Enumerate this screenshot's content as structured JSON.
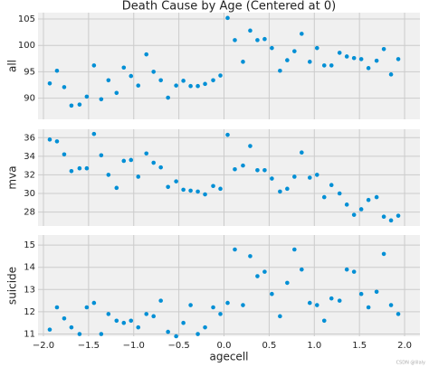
{
  "chart_data": [
    {
      "type": "scatter",
      "title": "Death Cause by Age (Centered at 0)",
      "ylabel": "all",
      "color": "#008fd5",
      "grid": true,
      "x": [
        -1.93,
        -1.85,
        -1.77,
        -1.69,
        -1.6,
        -1.52,
        -1.44,
        -1.36,
        -1.28,
        -1.19,
        -1.11,
        -1.03,
        -0.95,
        -0.86,
        -0.78,
        -0.7,
        -0.62,
        -0.53,
        -0.45,
        -0.37,
        -0.29,
        -0.21,
        -0.12,
        -0.04,
        0.04,
        0.12,
        0.21,
        0.29,
        0.37,
        0.45,
        0.53,
        0.62,
        0.7,
        0.78,
        0.86,
        0.95,
        1.03,
        1.11,
        1.19,
        1.28,
        1.36,
        1.44,
        1.52,
        1.6,
        1.69,
        1.77,
        1.85,
        1.93
      ],
      "values": [
        92.8,
        95.2,
        92.1,
        88.6,
        88.8,
        90.3,
        96.2,
        89.8,
        93.4,
        91.0,
        95.8,
        94.2,
        92.4,
        98.3,
        95.0,
        93.4,
        90.1,
        92.4,
        93.3,
        92.3,
        92.3,
        92.7,
        93.4,
        94.3,
        105.2,
        101.0,
        96.9,
        102.8,
        101.0,
        101.2,
        99.5,
        95.2,
        97.2,
        98.9,
        102.2,
        96.9,
        99.5,
        96.2,
        96.2,
        98.6,
        97.9,
        97.6,
        97.4,
        95.7,
        97.1,
        99.3,
        94.5,
        97.4
      ],
      "xlim": [
        -2.06,
        2.17
      ],
      "xticks": [
        -2,
        -1.5,
        -1,
        -0.5,
        0,
        0.5,
        1,
        1.5,
        2
      ],
      "ylim": [
        86,
        106.2
      ],
      "yticks": [
        90,
        95,
        100,
        105
      ]
    },
    {
      "type": "scatter",
      "ylabel": "mva",
      "color": "#008fd5",
      "grid": true,
      "x": [
        -1.93,
        -1.85,
        -1.77,
        -1.69,
        -1.6,
        -1.52,
        -1.44,
        -1.36,
        -1.28,
        -1.19,
        -1.11,
        -1.03,
        -0.95,
        -0.86,
        -0.78,
        -0.7,
        -0.62,
        -0.53,
        -0.45,
        -0.37,
        -0.29,
        -0.21,
        -0.12,
        -0.04,
        0.04,
        0.12,
        0.21,
        0.29,
        0.37,
        0.45,
        0.53,
        0.62,
        0.7,
        0.78,
        0.86,
        0.95,
        1.03,
        1.11,
        1.19,
        1.28,
        1.36,
        1.44,
        1.52,
        1.6,
        1.69,
        1.77,
        1.85,
        1.93
      ],
      "values": [
        35.8,
        35.6,
        34.2,
        32.4,
        32.7,
        32.7,
        36.4,
        34.1,
        32.0,
        30.6,
        33.5,
        33.6,
        31.8,
        34.3,
        33.3,
        32.8,
        30.7,
        31.3,
        30.4,
        30.3,
        30.2,
        29.9,
        30.8,
        30.5,
        36.3,
        32.6,
        33.0,
        35.1,
        32.5,
        32.5,
        31.6,
        30.2,
        30.5,
        31.8,
        34.4,
        31.7,
        32.0,
        29.6,
        30.9,
        30.0,
        28.8,
        27.7,
        28.3,
        29.3,
        29.6,
        27.5,
        27.1,
        27.6
      ],
      "xlim": [
        -2.06,
        2.17
      ],
      "xticks": [
        -2,
        -1.5,
        -1,
        -0.5,
        0,
        0.5,
        1,
        1.5,
        2
      ],
      "ylim": [
        26.5,
        36.9
      ],
      "yticks": [
        28,
        30,
        32,
        34,
        36
      ]
    },
    {
      "type": "scatter",
      "ylabel": "suicide",
      "xlabel": "agecell",
      "color": "#008fd5",
      "grid": true,
      "x": [
        -1.93,
        -1.85,
        -1.77,
        -1.69,
        -1.6,
        -1.52,
        -1.44,
        -1.36,
        -1.28,
        -1.19,
        -1.11,
        -1.03,
        -0.95,
        -0.86,
        -0.78,
        -0.7,
        -0.62,
        -0.53,
        -0.45,
        -0.37,
        -0.29,
        -0.21,
        -0.12,
        -0.04,
        0.04,
        0.12,
        0.21,
        0.29,
        0.37,
        0.45,
        0.53,
        0.62,
        0.7,
        0.78,
        0.86,
        0.95,
        1.03,
        1.11,
        1.19,
        1.28,
        1.36,
        1.44,
        1.52,
        1.6,
        1.69,
        1.77,
        1.85,
        1.93
      ],
      "values": [
        11.2,
        12.2,
        11.7,
        11.3,
        11.0,
        12.2,
        12.4,
        11.0,
        11.9,
        11.6,
        11.5,
        11.6,
        11.3,
        11.9,
        11.8,
        12.5,
        11.1,
        10.9,
        11.5,
        12.3,
        11.0,
        11.3,
        12.2,
        11.9,
        12.4,
        14.8,
        12.3,
        14.5,
        13.6,
        13.8,
        12.8,
        11.8,
        13.3,
        14.8,
        13.9,
        12.4,
        12.3,
        11.6,
        12.6,
        12.5,
        13.9,
        13.8,
        12.8,
        12.2,
        12.9,
        14.6,
        12.3,
        11.9
      ],
      "xlim": [
        -2.06,
        2.17
      ],
      "xticks": [
        {
          "value": -2,
          "label": "−2.0"
        },
        {
          "value": -1.5,
          "label": "−1.5"
        },
        {
          "value": -1,
          "label": "−1.0"
        },
        {
          "value": -0.5,
          "label": "−0.5"
        },
        {
          "value": 0,
          "label": "0.0"
        },
        {
          "value": 0.5,
          "label": "0.5"
        },
        {
          "value": 1,
          "label": "1.0"
        },
        {
          "value": 1.5,
          "label": "1.5"
        },
        {
          "value": 2,
          "label": "2.0"
        }
      ],
      "ylim": [
        10.9,
        15.45
      ],
      "yticks": [
        11,
        12,
        13,
        14,
        15
      ]
    }
  ],
  "watermark": "CSDN @lilaly"
}
